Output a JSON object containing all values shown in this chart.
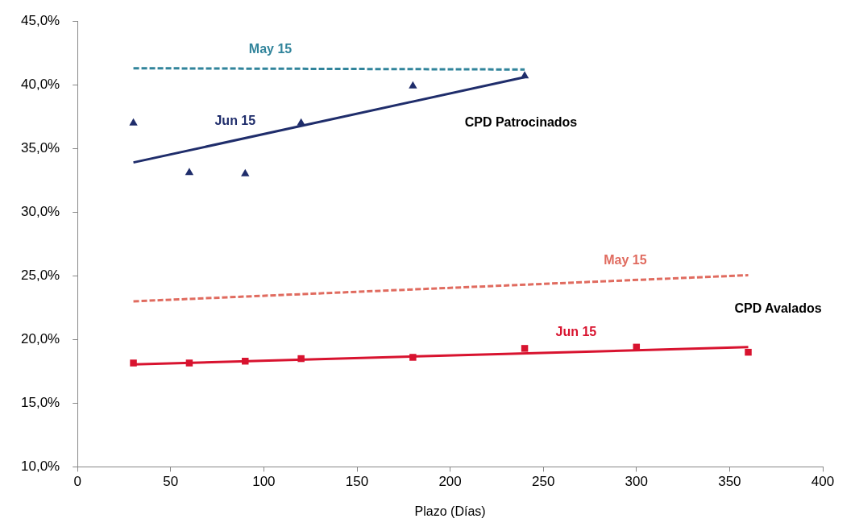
{
  "chart_data": {
    "type": "scatter",
    "xlabel": "Plazo (Días)",
    "xlim": [
      0,
      400
    ],
    "xticks": [
      0,
      50,
      100,
      150,
      200,
      250,
      300,
      350,
      400
    ],
    "ylim": [
      10,
      45
    ],
    "yticks": [
      {
        "value": 10,
        "label": "10,0%"
      },
      {
        "value": 15,
        "label": "15,0%"
      },
      {
        "value": 20,
        "label": "20,0%"
      },
      {
        "value": 25,
        "label": "25,0%"
      },
      {
        "value": 30,
        "label": "30,0%"
      },
      {
        "value": 35,
        "label": "35,0%"
      },
      {
        "value": 40,
        "label": "40,0%"
      },
      {
        "value": 45,
        "label": "45,0%"
      }
    ],
    "grid": false,
    "legend": false,
    "series": [
      {
        "type": "line",
        "name": "May 15",
        "color": "#31849b",
        "x": [
          30,
          240
        ],
        "values": [
          41.3,
          41.2
        ],
        "line_style": "dashed",
        "marker": "none"
      },
      {
        "type": "line",
        "name": "Jun 15",
        "color": "#1f2d6b",
        "x": [
          30,
          240
        ],
        "values": [
          33.9,
          40.6
        ],
        "line_style": "solid",
        "marker": "none"
      },
      {
        "color": "#1f2d6b",
        "x": [
          30,
          60,
          90,
          120,
          180,
          240
        ],
        "values": [
          37.0,
          33.1,
          33.0,
          37.0,
          39.9,
          40.7
        ],
        "marker": "triangle"
      },
      {
        "type": "line",
        "name": "May 15",
        "color": "#e06b5f",
        "x": [
          30,
          360
        ],
        "values": [
          23.0,
          25.05
        ],
        "line_style": "dashed",
        "marker": "none"
      },
      {
        "type": "line",
        "name": "Jun 15",
        "color": "#d8132f",
        "x": [
          30,
          360
        ],
        "values": [
          18.05,
          19.4
        ],
        "line_style": "solid",
        "marker": "none"
      },
      {
        "color": "#d8132f",
        "x": [
          30,
          60,
          90,
          120,
          180,
          240,
          300,
          360
        ],
        "values": [
          18.15,
          18.15,
          18.3,
          18.5,
          18.6,
          19.3,
          19.4,
          19.0
        ],
        "marker": "square"
      }
    ],
    "annotations": [
      "CPD Patrocinados",
      "CPD Avalados"
    ]
  }
}
